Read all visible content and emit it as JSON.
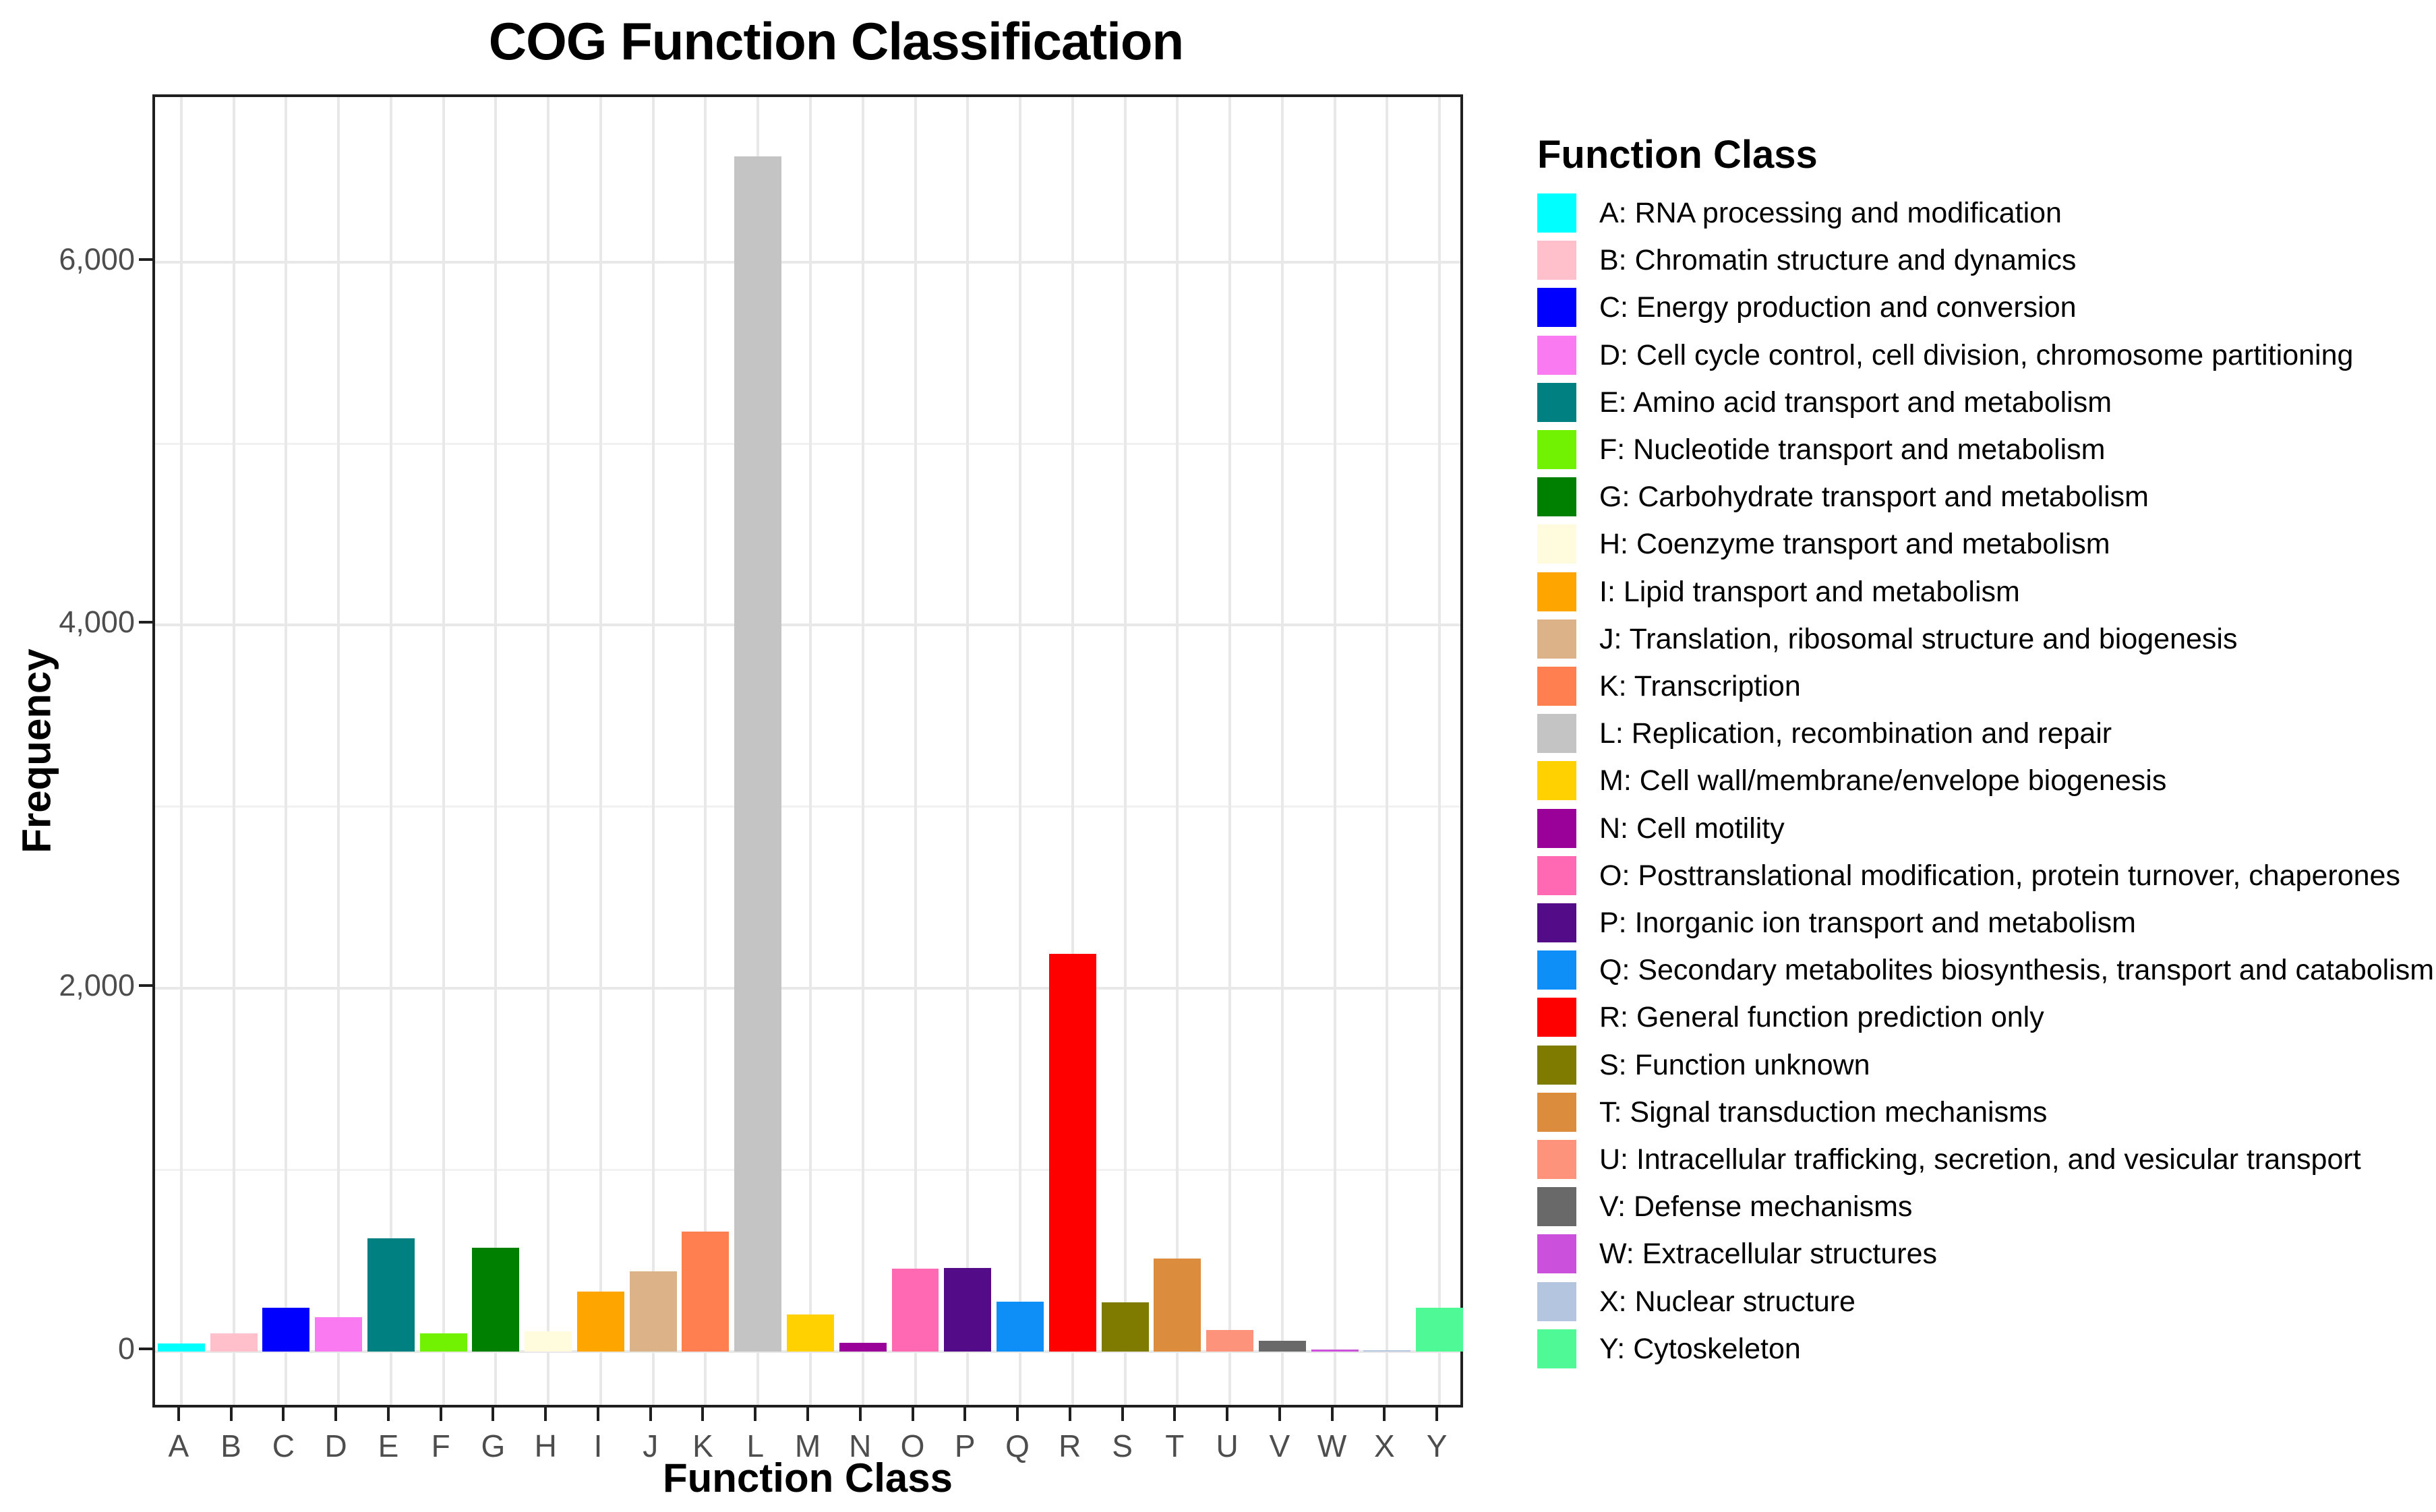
{
  "chart_data": {
    "type": "bar",
    "title": "COG Function Classification",
    "xlabel": "Function Class",
    "ylabel": "Frequency",
    "legend_title": "Function Class",
    "legend_position": "right",
    "grid": "on",
    "ylim": [
      -323,
      6908
    ],
    "yticks": {
      "values": [
        0,
        2000,
        4000,
        6000
      ],
      "labels": [
        "0",
        "2,000",
        "4,000",
        "6,000"
      ],
      "minor": [
        1000,
        3000,
        5000
      ]
    },
    "categories": [
      "A",
      "B",
      "C",
      "D",
      "E",
      "F",
      "G",
      "H",
      "I",
      "J",
      "K",
      "L",
      "M",
      "N",
      "O",
      "P",
      "Q",
      "R",
      "S",
      "T",
      "U",
      "V",
      "W",
      "X",
      "Y"
    ],
    "values": [
      45,
      100,
      240,
      190,
      625,
      100,
      570,
      110,
      330,
      440,
      660,
      6580,
      205,
      48,
      455,
      460,
      273,
      2190,
      270,
      512,
      117,
      59,
      10,
      5,
      242
    ],
    "colors": [
      "#00FFFF",
      "#FFC0CB",
      "#0000FF",
      "#FA7BF1",
      "#008080",
      "#70F202",
      "#008000",
      "#FFFBDC",
      "#FFA500",
      "#DCB288",
      "#FF7F50",
      "#C4C4C4",
      "#FFD100",
      "#990198",
      "#FF69B4",
      "#530B87",
      "#0D8FF7",
      "#FF0000",
      "#7F7B01",
      "#DC8C3D",
      "#FD937B",
      "#696969",
      "#CB51DC",
      "#B3C5DF",
      "#4FF995"
    ],
    "legend_labels": [
      "A: RNA processing and modification",
      "B: Chromatin structure and dynamics",
      "C: Energy production and conversion",
      "D: Cell cycle control, cell division, chromosome partitioning",
      "E: Amino acid transport and metabolism",
      "F: Nucleotide transport and metabolism",
      "G: Carbohydrate transport and metabolism",
      "H: Coenzyme transport and metabolism",
      "I: Lipid transport and metabolism",
      "J: Translation, ribosomal structure and biogenesis",
      "K: Transcription",
      "L: Replication, recombination and repair",
      "M: Cell wall/membrane/envelope biogenesis",
      "N: Cell motility",
      "O: Posttranslational modification, protein turnover, chaperones",
      "P: Inorganic ion transport and metabolism",
      "Q: Secondary metabolites biosynthesis, transport and catabolism",
      "R: General function prediction only",
      "S: Function unknown",
      "T: Signal transduction mechanisms",
      "U: Intracellular trafficking, secretion, and vesicular transport",
      "V: Defense mechanisms",
      "W: Extracellular structures",
      "X: Nuclear structure",
      "Y: Cytoskeleton"
    ]
  }
}
